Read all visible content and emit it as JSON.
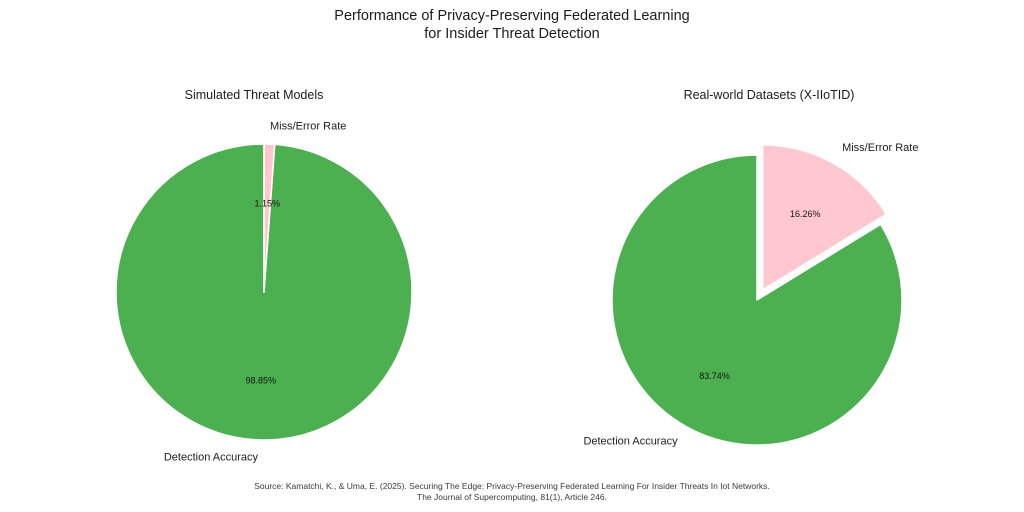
{
  "title": {
    "line1": "Performance of Privacy-Preserving Federated Learning",
    "line2": "for Insider Threat Detection"
  },
  "source": {
    "line1": "Source: Kamatchi, K., & Uma, E. (2025). Securing The Edge: Privacy-Preserving Federated Learning For Insider Threats In Iot Networks.",
    "line2": "The Journal of Supercomputing, 81(1), Article 246."
  },
  "colors": {
    "detection_green": "#4caf50",
    "error_pink": "#ffc8d0",
    "background": "#ffffff",
    "text": "#1c1c1c"
  },
  "chart_data": [
    {
      "type": "pie",
      "title": "Simulated Threat Models",
      "start_angle": 90,
      "direction": "counterclockwise",
      "legend_position": "none",
      "slices": [
        {
          "label": "Detection Accuracy",
          "value": 98.85,
          "pct_label": "98.85%",
          "color": "#4caf50",
          "explode": 0
        },
        {
          "label": "Miss/Error Rate",
          "value": 1.15,
          "pct_label": "1.15%",
          "color": "#ffc8d0",
          "explode": 0
        }
      ]
    },
    {
      "type": "pie",
      "title": "Real-world Datasets (X-IIoTID)",
      "start_angle": 90,
      "direction": "counterclockwise",
      "legend_position": "none",
      "slices": [
        {
          "label": "Detection Accuracy",
          "value": 83.74,
          "pct_label": "83.74%",
          "color": "#4caf50",
          "explode": 0
        },
        {
          "label": "Miss/Error Rate",
          "value": 16.26,
          "pct_label": "16.26%",
          "color": "#ffc8d0",
          "explode": 0.08
        }
      ]
    }
  ]
}
